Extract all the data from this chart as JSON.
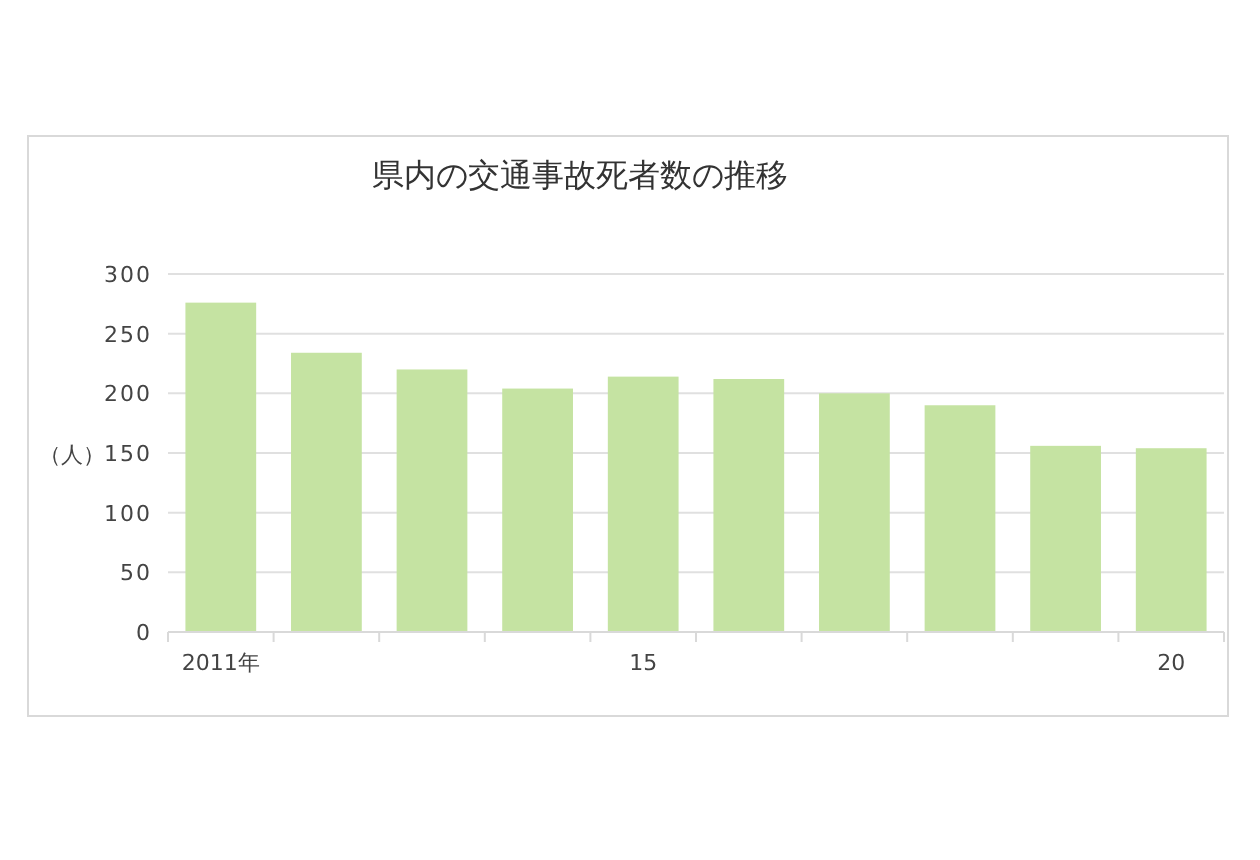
{
  "chart_data": {
    "type": "bar",
    "title": "県内の交通事故死者数の推移",
    "ylabel": "（人）",
    "categories": [
      "2011年",
      null,
      null,
      null,
      "15",
      null,
      null,
      null,
      null,
      "20"
    ],
    "values": [
      276,
      234,
      220,
      204,
      214,
      212,
      200,
      190,
      156,
      154
    ],
    "color": "#c5e3a2",
    "ylim": [
      0,
      300
    ],
    "yticks": [
      0,
      50,
      100,
      150,
      200,
      250,
      300
    ],
    "grid": "y"
  }
}
